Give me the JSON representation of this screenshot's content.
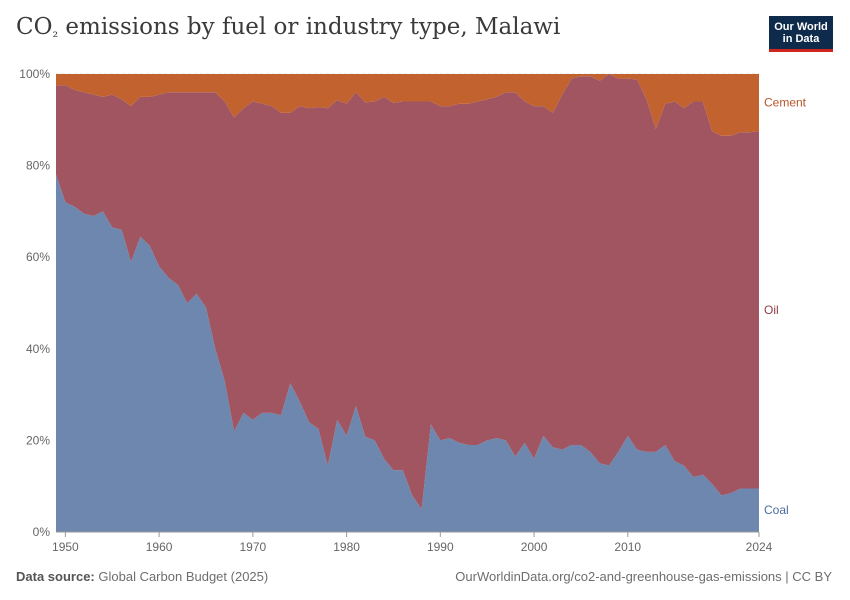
{
  "title": {
    "prefix": "CO",
    "subscript": "₂",
    "suffix": " emissions by fuel or industry type, Malawi"
  },
  "logo": {
    "line1": "Our World",
    "line2": "in Data"
  },
  "footer": {
    "source_label": "Data source:",
    "source_value": "Global Carbon Budget (2025)",
    "url": "OurWorldinData.org/co2-and-greenhouse-gas-emissions | CC BY"
  },
  "colors": {
    "coal": "#6d87ae",
    "oil": "#a05561",
    "cement": "#c2622f",
    "coal_label": "#4a6a9d",
    "oil_label": "#8f3b47",
    "cement_label": "#b5542a",
    "grid": "#dddddd",
    "axis_text": "#666666"
  },
  "chart_data": {
    "type": "area",
    "stacked": true,
    "normalized": true,
    "x": [
      1949,
      1950,
      1951,
      1952,
      1953,
      1954,
      1955,
      1956,
      1957,
      1958,
      1959,
      1960,
      1961,
      1962,
      1963,
      1964,
      1965,
      1966,
      1967,
      1968,
      1969,
      1970,
      1971,
      1972,
      1973,
      1974,
      1975,
      1976,
      1977,
      1978,
      1979,
      1980,
      1981,
      1982,
      1983,
      1984,
      1985,
      1986,
      1987,
      1988,
      1989,
      1990,
      1991,
      1992,
      1993,
      1994,
      1995,
      1996,
      1997,
      1998,
      1999,
      2000,
      2001,
      2002,
      2003,
      2004,
      2005,
      2006,
      2007,
      2008,
      2009,
      2010,
      2011,
      2012,
      2013,
      2014,
      2015,
      2016,
      2017,
      2018,
      2019,
      2020,
      2021,
      2022,
      2023,
      2024
    ],
    "series": [
      {
        "name": "Coal",
        "values": [
          78,
          72,
          71,
          69.5,
          69,
          70,
          66.5,
          66,
          59,
          64.5,
          62.5,
          58,
          55.5,
          54,
          50,
          52,
          49,
          40,
          33,
          22,
          26,
          24.5,
          26,
          26,
          25.5,
          32.5,
          28.5,
          24,
          22.5,
          14.5,
          24.5,
          21,
          27.5,
          20.8,
          20,
          16,
          13.5,
          13.5,
          8,
          5,
          23.5,
          20,
          20.5,
          19.5,
          19,
          19,
          20,
          20.5,
          20,
          16.5,
          19.5,
          16,
          21,
          18.5,
          18,
          19,
          19,
          17.5,
          15,
          14.5,
          17.5,
          21,
          18,
          17.5,
          17.5,
          19,
          15.5,
          14.5,
          12,
          12.5,
          10.5,
          8,
          8.5,
          9.5,
          9.5,
          9.5
        ]
      },
      {
        "name": "Oil",
        "values": [
          19.5,
          25.5,
          25.5,
          26.5,
          26.5,
          25,
          29,
          28.5,
          34,
          30.5,
          32.5,
          37.5,
          40.5,
          42,
          46,
          44,
          47,
          56,
          61,
          68.5,
          66.5,
          69.5,
          67.5,
          67,
          66,
          59,
          64.5,
          68.5,
          70.3,
          78,
          69.8,
          72.5,
          68.5,
          73,
          74,
          79,
          80.2,
          80.5,
          86,
          89,
          70.5,
          73,
          72.5,
          74,
          74.5,
          75,
          74.5,
          74.5,
          76,
          79.5,
          74.5,
          77,
          72,
          73,
          77.5,
          80,
          80.5,
          82,
          83.5,
          85.5,
          81.5,
          78,
          80.8,
          77,
          70.5,
          74.5,
          78.5,
          78,
          82,
          81.5,
          77,
          78.5,
          78,
          77.8,
          77.8,
          78
        ]
      },
      {
        "name": "Cement",
        "values": [
          2.5,
          2.5,
          3.5,
          4,
          4.5,
          5,
          4.5,
          5.5,
          7,
          5,
          5,
          4.5,
          4,
          4,
          4,
          4,
          4,
          4,
          6,
          9.5,
          7.5,
          6,
          6.5,
          7,
          8.5,
          8.5,
          7,
          7.5,
          7.2,
          7.5,
          5.7,
          6.5,
          4,
          6.2,
          6,
          5,
          6.3,
          6,
          6,
          6,
          6,
          7,
          7,
          6.5,
          6.5,
          6,
          5.5,
          5,
          4,
          4,
          6,
          7,
          7,
          8.5,
          4.5,
          1,
          0.5,
          0.5,
          1.5,
          0,
          1,
          1,
          1.2,
          5.5,
          12,
          6.5,
          6,
          7.5,
          6,
          6,
          12.5,
          13.5,
          13.5,
          12.7,
          12.7,
          12.5
        ]
      }
    ],
    "xlim": [
      1949,
      2024
    ],
    "ylim": [
      0,
      100
    ],
    "x_ticks": [
      1950,
      1960,
      1970,
      1980,
      1990,
      2000,
      2010,
      2024
    ],
    "y_ticks": [
      0,
      20,
      40,
      60,
      80,
      100
    ],
    "y_tick_suffix": "%",
    "legend_position": "right-inline",
    "grid": true
  }
}
